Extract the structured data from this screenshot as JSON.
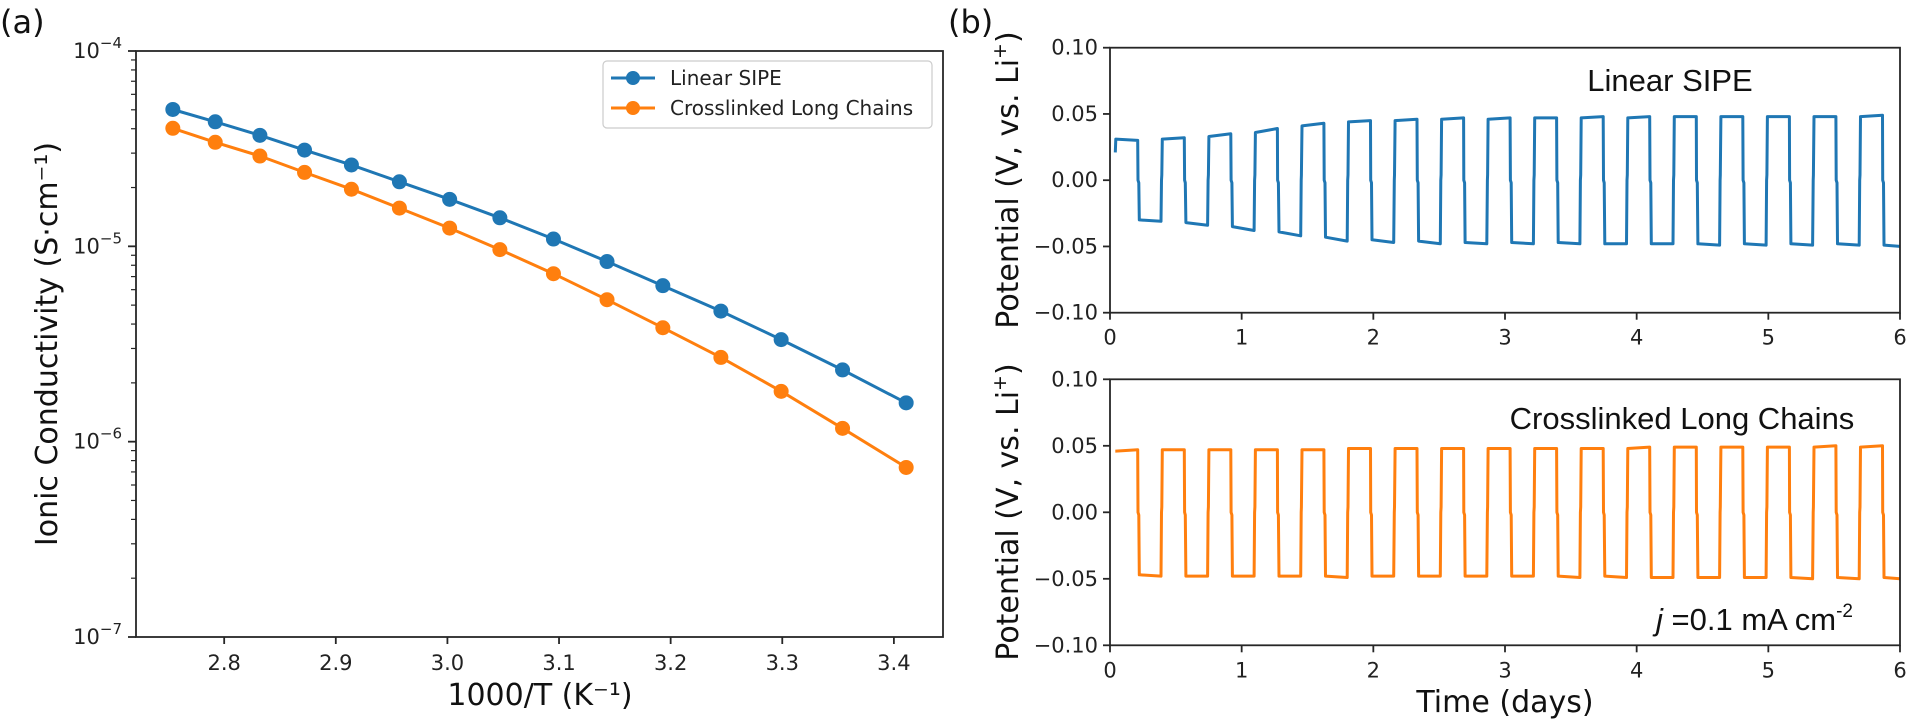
{
  "figure": {
    "panel_a_label": "(a)",
    "panel_b_label": "(b)"
  },
  "chart_data": [
    {
      "id": "a",
      "type": "line",
      "title": "",
      "xlabel": "1000/T (K⁻¹)",
      "ylabel": "Ionic Conductivity (S·cm⁻¹)",
      "yscale": "log",
      "xlim": [
        2.721,
        3.444
      ],
      "ylim": [
        1e-07,
        0.0001
      ],
      "xticks": [
        2.8,
        2.9,
        3.0,
        3.1,
        3.2,
        3.3,
        3.4
      ],
      "xtick_labels": [
        "2.8",
        "2.9",
        "3.0",
        "3.1",
        "3.2",
        "3.3",
        "3.4"
      ],
      "yticks": [
        0.0001,
        1e-05,
        1e-06,
        1e-07
      ],
      "ytick_labels": [
        {
          "base": "10",
          "exp": "−4"
        },
        {
          "base": "10",
          "exp": "−5"
        },
        {
          "base": "10",
          "exp": "−6"
        },
        {
          "base": "10",
          "exp": "−7"
        }
      ],
      "grid": false,
      "legend": {
        "position": "top-right",
        "entries": [
          "Linear SIPE",
          "Crosslinked Long Chains"
        ]
      },
      "x": [
        2.754,
        2.792,
        2.832,
        2.872,
        2.914,
        2.957,
        3.002,
        3.047,
        3.095,
        3.143,
        3.193,
        3.245,
        3.299,
        3.354,
        3.411
      ],
      "series": [
        {
          "name": "Linear SIPE",
          "color": "#1f77b4",
          "marker": "circle",
          "values": [
            5.02e-05,
            4.34e-05,
            3.7e-05,
            3.11e-05,
            2.61e-05,
            2.14e-05,
            1.74e-05,
            1.4e-05,
            1.09e-05,
            8.36e-06,
            6.29e-06,
            4.66e-06,
            3.33e-06,
            2.33e-06,
            1.58e-06
          ]
        },
        {
          "name": "Crosslinked Long Chains",
          "color": "#ff7f0e",
          "marker": "circle",
          "values": [
            4.02e-05,
            3.41e-05,
            2.9e-05,
            2.39e-05,
            1.96e-05,
            1.57e-05,
            1.24e-05,
            9.62e-06,
            7.24e-06,
            5.33e-06,
            3.83e-06,
            2.7e-06,
            1.81e-06,
            1.17e-06,
            7.38e-07
          ]
        }
      ]
    },
    {
      "id": "b-top",
      "type": "line",
      "title": "",
      "annotation": "Linear SIPE",
      "xlabel": "",
      "ylabel": "Potential (V, vs. Li⁺)",
      "ylabel_main": "Potential (V, vs. Li",
      "ylabel_sup": "+",
      "ylabel_end": ")",
      "xlim": [
        0,
        6
      ],
      "ylim": [
        -0.1,
        0.1
      ],
      "xticks": [
        0,
        1,
        2,
        3,
        4,
        5,
        6
      ],
      "xtick_labels": [
        "0",
        "1",
        "2",
        "3",
        "4",
        "5",
        "6"
      ],
      "yticks": [
        0.1,
        0.05,
        0.0,
        -0.05,
        -0.1
      ],
      "ytick_labels": [
        "0.10",
        "0.05",
        "0.00",
        "−0.05",
        "−0.10"
      ],
      "grid": false,
      "series": [
        {
          "name": "Linear SIPE",
          "color": "#1f77b4",
          "start_time_days": 0.04,
          "initial_value": 0.021,
          "cycle_period_days": 0.3535,
          "end_time_days": 6.0,
          "positive_start": [
            0.031,
            0.031,
            0.033,
            0.036,
            0.041,
            0.044,
            0.045,
            0.046,
            0.046,
            0.047,
            0.047,
            0.047,
            0.048,
            0.048,
            0.048,
            0.048,
            0.048
          ],
          "positive_end": [
            0.03,
            0.032,
            0.035,
            0.039,
            0.043,
            0.045,
            0.046,
            0.047,
            0.047,
            0.047,
            0.048,
            0.048,
            0.048,
            0.048,
            0.048,
            0.048,
            0.049
          ],
          "negative_start": [
            -0.03,
            -0.032,
            -0.035,
            -0.039,
            -0.043,
            -0.045,
            -0.046,
            -0.047,
            -0.047,
            -0.047,
            -0.048,
            -0.048,
            -0.048,
            -0.048,
            -0.048,
            -0.048,
            -0.049
          ],
          "negative_end": [
            -0.031,
            -0.034,
            -0.038,
            -0.042,
            -0.046,
            -0.047,
            -0.048,
            -0.048,
            -0.048,
            -0.048,
            -0.048,
            -0.048,
            -0.049,
            -0.049,
            -0.049,
            -0.049,
            -0.05
          ]
        }
      ]
    },
    {
      "id": "b-bottom",
      "type": "line",
      "title": "",
      "annotation": "Crosslinked Long Chains",
      "annotation2_italic": "j",
      "annotation2_main": " =0.1 mA cm",
      "annotation2_sup": "-2",
      "xlabel": "Time (days)",
      "ylabel": "Potential (V, vs. Li⁺)",
      "ylabel_main": "Potential (V, vs. Li",
      "ylabel_sup": "+",
      "ylabel_end": ")",
      "xlim": [
        0,
        6
      ],
      "ylim": [
        -0.1,
        0.1
      ],
      "xticks": [
        0,
        1,
        2,
        3,
        4,
        5,
        6
      ],
      "xtick_labels": [
        "0",
        "1",
        "2",
        "3",
        "4",
        "5",
        "6"
      ],
      "yticks": [
        0.1,
        0.05,
        0.0,
        -0.05,
        -0.1
      ],
      "ytick_labels": [
        "0.10",
        "0.05",
        "0.00",
        "−0.05",
        "−0.10"
      ],
      "grid": false,
      "series": [
        {
          "name": "Crosslinked Long Chains",
          "color": "#ff7f0e",
          "start_time_days": 0.04,
          "initial_value": 0.046,
          "cycle_period_days": 0.3535,
          "end_time_days": 6.0,
          "positive_start": [
            0.046,
            0.047,
            0.047,
            0.047,
            0.047,
            0.048,
            0.048,
            0.048,
            0.048,
            0.048,
            0.048,
            0.048,
            0.049,
            0.049,
            0.049,
            0.049,
            0.049
          ],
          "positive_end": [
            0.047,
            0.047,
            0.047,
            0.047,
            0.047,
            0.048,
            0.048,
            0.048,
            0.048,
            0.048,
            0.048,
            0.049,
            0.049,
            0.049,
            0.049,
            0.05,
            0.05
          ],
          "negative_start": [
            -0.047,
            -0.048,
            -0.048,
            -0.048,
            -0.048,
            -0.048,
            -0.048,
            -0.048,
            -0.048,
            -0.048,
            -0.048,
            -0.049,
            -0.049,
            -0.049,
            -0.049,
            -0.049,
            -0.049
          ],
          "negative_end": [
            -0.048,
            -0.048,
            -0.048,
            -0.048,
            -0.049,
            -0.048,
            -0.048,
            -0.048,
            -0.048,
            -0.049,
            -0.049,
            -0.049,
            -0.049,
            -0.049,
            -0.05,
            -0.05,
            -0.05
          ]
        }
      ]
    }
  ]
}
